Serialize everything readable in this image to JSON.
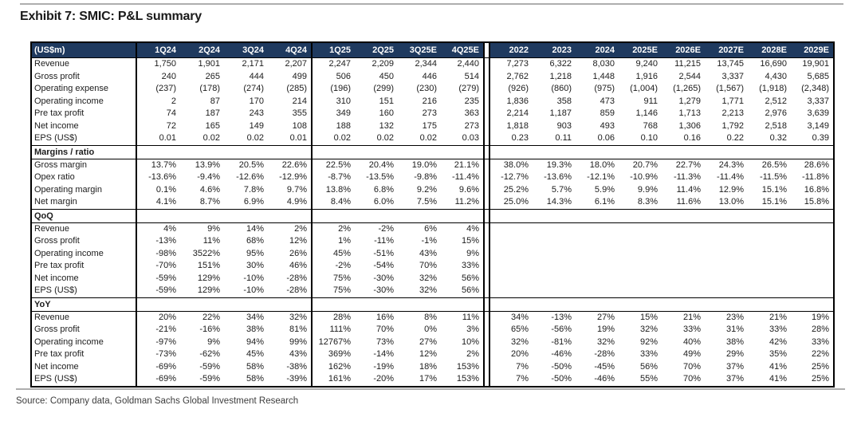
{
  "page": {
    "title": "Exhibit 7: SMIC: P&L summary",
    "source": "Source: Company data, Goldman Sachs Global Investment Research"
  },
  "colors": {
    "header_bg": "#1F3A5F",
    "header_text": "#FFFFFF",
    "table_border": "#000000",
    "divider_rule": "#AEAEAE"
  },
  "table": {
    "unit_label": "(US$m)",
    "column_groups": [
      {
        "name": "quarters-2024",
        "columns": [
          "1Q24",
          "2Q24",
          "3Q24",
          "4Q24"
        ]
      },
      {
        "name": "quarters-2025",
        "columns": [
          "1Q25",
          "2Q25",
          "3Q25E",
          "4Q25E"
        ]
      },
      {
        "name": "years",
        "columns": [
          "2022",
          "2023",
          "2024",
          "2025E",
          "2026E",
          "2027E",
          "2028E",
          "2029E"
        ]
      }
    ],
    "sections": [
      {
        "header": null,
        "rows": [
          {
            "label": "Revenue",
            "values": [
              "1,750",
              "1,901",
              "2,171",
              "2,207",
              "2,247",
              "2,209",
              "2,344",
              "2,440",
              "7,273",
              "6,322",
              "8,030",
              "9,240",
              "11,215",
              "13,745",
              "16,690",
              "19,901"
            ]
          },
          {
            "label": "Gross profit",
            "values": [
              "240",
              "265",
              "444",
              "499",
              "506",
              "450",
              "446",
              "514",
              "2,762",
              "1,218",
              "1,448",
              "1,916",
              "2,544",
              "3,337",
              "4,430",
              "5,685"
            ]
          },
          {
            "label": "Operating expense",
            "values": [
              "(237)",
              "(178)",
              "(274)",
              "(285)",
              "(196)",
              "(299)",
              "(230)",
              "(279)",
              "(926)",
              "(860)",
              "(975)",
              "(1,004)",
              "(1,265)",
              "(1,567)",
              "(1,918)",
              "(2,348)"
            ]
          },
          {
            "label": "Operating income",
            "values": [
              "2",
              "87",
              "170",
              "214",
              "310",
              "151",
              "216",
              "235",
              "1,836",
              "358",
              "473",
              "911",
              "1,279",
              "1,771",
              "2,512",
              "3,337"
            ]
          },
          {
            "label": "Pre tax profit",
            "values": [
              "74",
              "187",
              "243",
              "355",
              "349",
              "160",
              "273",
              "363",
              "2,214",
              "1,187",
              "859",
              "1,146",
              "1,713",
              "2,213",
              "2,976",
              "3,639"
            ]
          },
          {
            "label": "Net income",
            "values": [
              "72",
              "165",
              "149",
              "108",
              "188",
              "132",
              "175",
              "273",
              "1,818",
              "903",
              "493",
              "768",
              "1,306",
              "1,792",
              "2,518",
              "3,149"
            ]
          },
          {
            "label": "EPS (US$)",
            "values": [
              "0.01",
              "0.02",
              "0.02",
              "0.01",
              "0.02",
              "0.02",
              "0.02",
              "0.03",
              "0.23",
              "0.11",
              "0.06",
              "0.10",
              "0.16",
              "0.22",
              "0.32",
              "0.39"
            ]
          }
        ]
      },
      {
        "header": "Margins / ratio",
        "rows": [
          {
            "label": "Gross margin",
            "values": [
              "13.7%",
              "13.9%",
              "20.5%",
              "22.6%",
              "22.5%",
              "20.4%",
              "19.0%",
              "21.1%",
              "38.0%",
              "19.3%",
              "18.0%",
              "20.7%",
              "22.7%",
              "24.3%",
              "26.5%",
              "28.6%"
            ]
          },
          {
            "label": "Opex ratio",
            "values": [
              "-13.6%",
              "-9.4%",
              "-12.6%",
              "-12.9%",
              "-8.7%",
              "-13.5%",
              "-9.8%",
              "-11.4%",
              "-12.7%",
              "-13.6%",
              "-12.1%",
              "-10.9%",
              "-11.3%",
              "-11.4%",
              "-11.5%",
              "-11.8%"
            ]
          },
          {
            "label": "Operating margin",
            "values": [
              "0.1%",
              "4.6%",
              "7.8%",
              "9.7%",
              "13.8%",
              "6.8%",
              "9.2%",
              "9.6%",
              "25.2%",
              "5.7%",
              "5.9%",
              "9.9%",
              "11.4%",
              "12.9%",
              "15.1%",
              "16.8%"
            ]
          },
          {
            "label": "Net margin",
            "values": [
              "4.1%",
              "8.7%",
              "6.9%",
              "4.9%",
              "8.4%",
              "6.0%",
              "7.5%",
              "11.2%",
              "25.0%",
              "14.3%",
              "6.1%",
              "8.3%",
              "11.6%",
              "13.0%",
              "15.1%",
              "15.8%"
            ]
          }
        ]
      },
      {
        "header": "QoQ",
        "rows": [
          {
            "label": "Revenue",
            "values": [
              "4%",
              "9%",
              "14%",
              "2%",
              "2%",
              "-2%",
              "6%",
              "4%",
              "",
              "",
              "",
              "",
              "",
              "",
              "",
              ""
            ]
          },
          {
            "label": "Gross profit",
            "values": [
              "-13%",
              "11%",
              "68%",
              "12%",
              "1%",
              "-11%",
              "-1%",
              "15%",
              "",
              "",
              "",
              "",
              "",
              "",
              "",
              ""
            ]
          },
          {
            "label": "Operating income",
            "values": [
              "-98%",
              "3522%",
              "95%",
              "26%",
              "45%",
              "-51%",
              "43%",
              "9%",
              "",
              "",
              "",
              "",
              "",
              "",
              "",
              ""
            ]
          },
          {
            "label": "Pre tax profit",
            "values": [
              "-70%",
              "151%",
              "30%",
              "46%",
              "-2%",
              "-54%",
              "70%",
              "33%",
              "",
              "",
              "",
              "",
              "",
              "",
              "",
              ""
            ]
          },
          {
            "label": "Net income",
            "values": [
              "-59%",
              "129%",
              "-10%",
              "-28%",
              "75%",
              "-30%",
              "32%",
              "56%",
              "",
              "",
              "",
              "",
              "",
              "",
              "",
              ""
            ]
          },
          {
            "label": "EPS (US$)",
            "values": [
              "-59%",
              "129%",
              "-10%",
              "-28%",
              "75%",
              "-30%",
              "32%",
              "56%",
              "",
              "",
              "",
              "",
              "",
              "",
              "",
              ""
            ]
          }
        ]
      },
      {
        "header": "YoY",
        "rows": [
          {
            "label": "Revenue",
            "values": [
              "20%",
              "22%",
              "34%",
              "32%",
              "28%",
              "16%",
              "8%",
              "11%",
              "34%",
              "-13%",
              "27%",
              "15%",
              "21%",
              "23%",
              "21%",
              "19%"
            ]
          },
          {
            "label": "Gross profit",
            "values": [
              "-21%",
              "-16%",
              "38%",
              "81%",
              "111%",
              "70%",
              "0%",
              "3%",
              "65%",
              "-56%",
              "19%",
              "32%",
              "33%",
              "31%",
              "33%",
              "28%"
            ]
          },
          {
            "label": "Operating income",
            "values": [
              "-97%",
              "9%",
              "94%",
              "99%",
              "12767%",
              "73%",
              "27%",
              "10%",
              "32%",
              "-81%",
              "32%",
              "92%",
              "40%",
              "38%",
              "42%",
              "33%"
            ]
          },
          {
            "label": "Pre tax profit",
            "values": [
              "-73%",
              "-62%",
              "45%",
              "43%",
              "369%",
              "-14%",
              "12%",
              "2%",
              "20%",
              "-46%",
              "-28%",
              "33%",
              "49%",
              "29%",
              "35%",
              "22%"
            ]
          },
          {
            "label": "Net income",
            "values": [
              "-69%",
              "-59%",
              "58%",
              "-38%",
              "162%",
              "-19%",
              "18%",
              "153%",
              "7%",
              "-50%",
              "-45%",
              "56%",
              "70%",
              "37%",
              "41%",
              "25%"
            ]
          },
          {
            "label": "EPS (US$)",
            "values": [
              "-69%",
              "-59%",
              "58%",
              "-39%",
              "161%",
              "-20%",
              "17%",
              "153%",
              "7%",
              "-50%",
              "-46%",
              "55%",
              "70%",
              "37%",
              "41%",
              "25%"
            ]
          }
        ]
      }
    ]
  }
}
